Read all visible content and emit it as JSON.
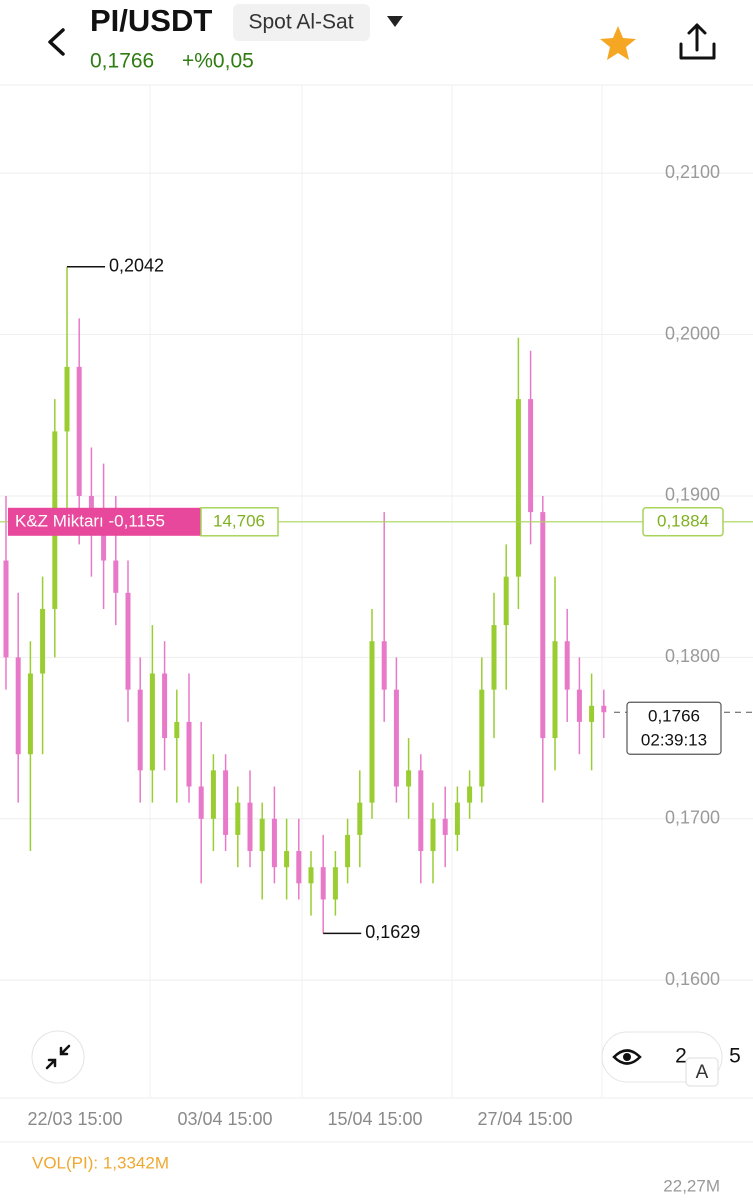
{
  "header": {
    "pair": "PI/USDT",
    "market": "Spot Al-Sat",
    "price": "0,1766",
    "change": "+%0,05"
  },
  "controls": [
    "2",
    "5",
    "A"
  ],
  "chart_data": {
    "type": "candlestick",
    "up_color": "#9acd32",
    "down_color": "#e879c9",
    "open": [
      0.186,
      0.18,
      0.174,
      0.179,
      0.183,
      0.194,
      0.198,
      0.19,
      0.188,
      0.186,
      0.184,
      0.178,
      0.173,
      0.179,
      0.175,
      0.176,
      0.172,
      0.17,
      0.173,
      0.169,
      0.171,
      0.168,
      0.17,
      0.167,
      0.168,
      0.166,
      0.167,
      0.165,
      0.167,
      0.169,
      0.171,
      0.181,
      0.178,
      0.172,
      0.173,
      0.168,
      0.17,
      0.169,
      0.171,
      0.172,
      0.178,
      0.182,
      0.185,
      0.196,
      0.189,
      0.175,
      0.181,
      0.178,
      0.176,
      0.177
    ],
    "high": [
      0.19,
      0.184,
      0.181,
      0.185,
      0.196,
      0.2042,
      0.201,
      0.193,
      0.192,
      0.19,
      0.186,
      0.18,
      0.182,
      0.181,
      0.178,
      0.179,
      0.176,
      0.174,
      0.174,
      0.172,
      0.173,
      0.171,
      0.172,
      0.17,
      0.17,
      0.168,
      0.169,
      0.168,
      0.17,
      0.173,
      0.183,
      0.189,
      0.18,
      0.175,
      0.174,
      0.171,
      0.172,
      0.172,
      0.173,
      0.18,
      0.184,
      0.187,
      0.1998,
      0.199,
      0.19,
      0.185,
      0.183,
      0.18,
      0.179,
      0.178
    ],
    "low": [
      0.178,
      0.171,
      0.168,
      0.174,
      0.18,
      0.189,
      0.187,
      0.185,
      0.183,
      0.182,
      0.176,
      0.171,
      0.171,
      0.173,
      0.171,
      0.171,
      0.166,
      0.168,
      0.168,
      0.167,
      0.167,
      0.165,
      0.166,
      0.165,
      0.165,
      0.164,
      0.1629,
      0.164,
      0.166,
      0.167,
      0.17,
      0.176,
      0.171,
      0.17,
      0.166,
      0.166,
      0.167,
      0.168,
      0.17,
      0.171,
      0.175,
      0.178,
      0.183,
      0.187,
      0.171,
      0.173,
      0.176,
      0.174,
      0.173,
      0.175
    ],
    "close": [
      0.18,
      0.174,
      0.179,
      0.183,
      0.194,
      0.198,
      0.19,
      0.188,
      0.186,
      0.184,
      0.178,
      0.173,
      0.179,
      0.175,
      0.176,
      0.172,
      0.17,
      0.173,
      0.169,
      0.171,
      0.168,
      0.17,
      0.167,
      0.168,
      0.166,
      0.167,
      0.165,
      0.167,
      0.169,
      0.171,
      0.181,
      0.178,
      0.172,
      0.173,
      0.168,
      0.17,
      0.169,
      0.171,
      0.172,
      0.178,
      0.182,
      0.185,
      0.196,
      0.189,
      0.175,
      0.181,
      0.178,
      0.176,
      0.177,
      0.1766
    ],
    "ylim": [
      0.1527,
      0.2154
    ],
    "yticks": [
      {
        "value": 0.16,
        "label": "0,1600"
      },
      {
        "value": 0.17,
        "label": "0,1700"
      },
      {
        "value": 0.18,
        "label": "0,1800"
      },
      {
        "value": 0.19,
        "label": "0,1900"
      },
      {
        "value": 0.2,
        "label": "0,2000"
      },
      {
        "value": 0.21,
        "label": "0,2100"
      }
    ],
    "grid": true,
    "xtick_labels": [
      "22/03 15:00",
      "03/04 15:00",
      "15/04 15:00",
      "27/04 15:00"
    ],
    "max_marker": {
      "value": 0.2042,
      "label": "0,2042"
    },
    "min_marker": {
      "value": 0.1629,
      "label": "0,1629"
    },
    "position": {
      "value": 0.1884,
      "label": "0,1884",
      "pnl_label": "K&Z Miktarı -0,1155",
      "amount": "14,706"
    },
    "last_price": {
      "value": 0.1766,
      "label": "0,1766",
      "countdown": "02:39:13"
    },
    "volume_label": "VOL(PI): 1,3342M",
    "volume_axis_label": "22,27M"
  }
}
